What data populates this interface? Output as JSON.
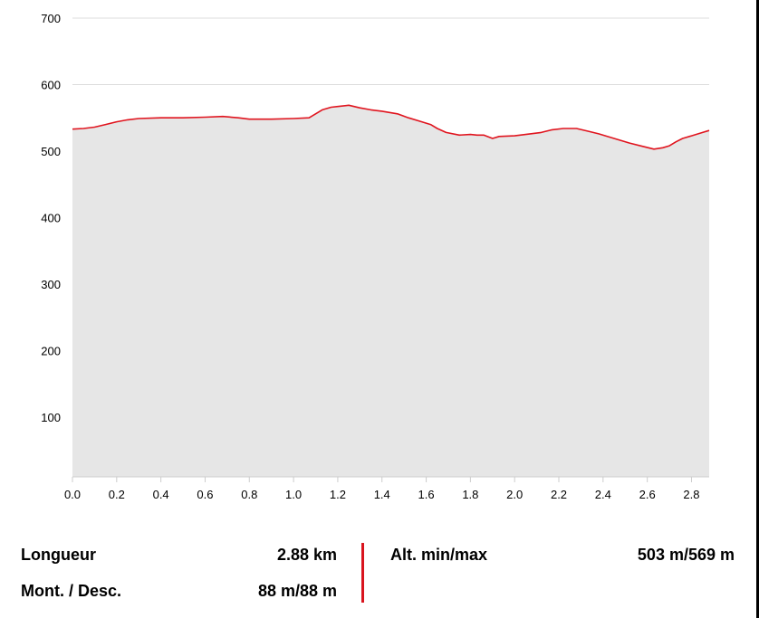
{
  "chart_data": {
    "type": "area",
    "title": "",
    "xlabel": "",
    "ylabel": "",
    "xlim": [
      0,
      2.88
    ],
    "ylim": [
      10,
      700
    ],
    "x_ticks": [
      "0.0",
      "0.2",
      "0.4",
      "0.6",
      "0.8",
      "1.0",
      "1.2",
      "1.4",
      "1.6",
      "1.8",
      "2.0",
      "2.2",
      "2.4",
      "2.6",
      "2.8"
    ],
    "y_ticks": [
      "100",
      "200",
      "300",
      "400",
      "500",
      "600",
      "700"
    ],
    "grid": "horizontal",
    "line_color": "#e0141e",
    "fill_color": "#e6e6e6",
    "series": [
      {
        "x": [
          0.0,
          0.05,
          0.1,
          0.15,
          0.2,
          0.25,
          0.3,
          0.4,
          0.5,
          0.6,
          0.68,
          0.75,
          0.8,
          0.9,
          1.0,
          1.07,
          1.1,
          1.13,
          1.17,
          1.2,
          1.25,
          1.3,
          1.35,
          1.4,
          1.47,
          1.52,
          1.57,
          1.62,
          1.65,
          1.69,
          1.75,
          1.8,
          1.83,
          1.86,
          1.9,
          1.93,
          2.0,
          2.05,
          2.12,
          2.17,
          2.22,
          2.28,
          2.33,
          2.38,
          2.45,
          2.52,
          2.58,
          2.63,
          2.67,
          2.7,
          2.73,
          2.76,
          2.8,
          2.85,
          2.88
        ],
        "y": [
          533,
          534,
          536,
          540,
          544,
          547,
          549,
          550,
          550,
          551,
          552,
          550,
          548,
          548,
          549,
          550,
          556,
          562,
          566,
          567,
          569,
          565,
          562,
          560,
          556,
          550,
          545,
          540,
          534,
          528,
          524,
          525,
          524,
          524,
          519,
          522,
          523,
          525,
          528,
          532,
          534,
          534,
          530,
          526,
          519,
          512,
          507,
          503,
          505,
          508,
          514,
          519,
          523,
          528,
          531
        ]
      }
    ]
  },
  "stats": {
    "length_label": "Longueur",
    "length_value": "2.88 km",
    "elevation_label": "Mont. / Desc.",
    "elevation_value": "88 m/88 m",
    "altitude_label": "Alt. min/max",
    "altitude_value": "503 m/569 m"
  }
}
